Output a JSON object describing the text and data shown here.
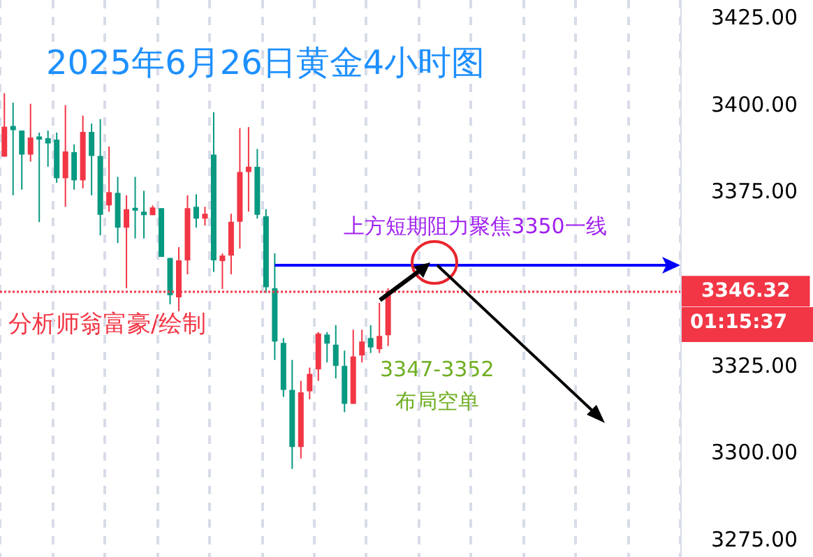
{
  "chart_data": {
    "type": "candlestick",
    "title": "2025年6月26日黄金4小时图",
    "categories": [
      null,
      null,
      null,
      null,
      null,
      null,
      null,
      null,
      null,
      null,
      null,
      null,
      null,
      null,
      null,
      null,
      null,
      null,
      null,
      null,
      null,
      null,
      null,
      null,
      null,
      null,
      null,
      null,
      null,
      null,
      null,
      null,
      null,
      null,
      null,
      null,
      null,
      null,
      null,
      null,
      null,
      null,
      null,
      null,
      null,
      null,
      null,
      null,
      null,
      null,
      null,
      null,
      null,
      null,
      null,
      null,
      null,
      null,
      null,
      null,
      null,
      null,
      null,
      null,
      null,
      null,
      null,
      null,
      null,
      null,
      null,
      null,
      null,
      null,
      null,
      null,
      null,
      null
    ],
    "ohlc": [
      [
        3385.0,
        3403.2,
        3385.0,
        3393.6
      ],
      [
        3393.8,
        3400.5,
        3373.9,
        3392.6
      ],
      [
        3392.5,
        3392.5,
        3375.5,
        3385.6
      ],
      [
        3385.6,
        3400.2,
        3383.6,
        3390.5
      ],
      [
        3390.8,
        3391.9,
        3366.2,
        3389.9
      ],
      [
        3390.3,
        3392.5,
        3382.1,
        3388.8
      ],
      [
        3389.9,
        3391.9,
        3377.5,
        3378.8
      ],
      [
        3378.8,
        3399.8,
        3370.6,
        3386.5
      ],
      [
        3386.3,
        3388.5,
        3375.5,
        3378.2
      ],
      [
        3378.2,
        3396.8,
        3375.9,
        3392.1
      ],
      [
        3392.1,
        3394.5,
        3373.9,
        3385.2
      ],
      [
        3385.2,
        3395.8,
        3362.4,
        3368.3
      ],
      [
        3371.0,
        3387.9,
        3369.2,
        3374.8
      ],
      [
        3374.6,
        3379.2,
        3360.2,
        3364.6
      ],
      [
        3364.6,
        3373.9,
        3347.2,
        3369.9
      ],
      [
        3370.3,
        3379.2,
        3361.5,
        3369.5
      ],
      [
        3369.2,
        3375.2,
        3361.5,
        3368.2
      ],
      [
        3368.2,
        3371.0,
        3368.2,
        3370.4
      ],
      [
        3370.2,
        3370.2,
        3356.2,
        3356.2
      ],
      [
        3355.9,
        3355.9,
        3342.6,
        3345.2
      ],
      [
        3344.6,
        3359.0,
        3340.6,
        3355.2
      ],
      [
        3355.2,
        3373.9,
        3351.2,
        3370.2
      ],
      [
        3370.6,
        3374.2,
        3364.6,
        3367.2
      ],
      [
        3367.2,
        3370.6,
        3365.2,
        3368.6
      ],
      [
        3385.6,
        3397.8,
        3351.9,
        3355.2
      ],
      [
        3355.0,
        3357.2,
        3347.0,
        3356.6
      ],
      [
        3356.6,
        3368.6,
        3351.2,
        3366.3
      ],
      [
        3366.3,
        3393.2,
        3358.6,
        3380.6
      ],
      [
        3380.6,
        3393.5,
        3369.2,
        3382.1
      ],
      [
        3382.1,
        3387.2,
        3367.2,
        3368.3
      ],
      [
        3367.9,
        3369.9,
        3345.9,
        3347.5
      ],
      [
        3347.2,
        3357.2,
        3326.6,
        3331.9
      ],
      [
        3331.5,
        3332.9,
        3316.0,
        3318.0
      ],
      [
        3318.0,
        3326.6,
        3295.3,
        3301.6
      ],
      [
        3301.6,
        3320.6,
        3298.3,
        3317.3
      ],
      [
        3317.6,
        3324.4,
        3315.3,
        3322.6
      ],
      [
        3323.9,
        3334.6,
        3320.6,
        3334.2
      ],
      [
        3333.9,
        3334.6,
        3325.9,
        3331.3
      ],
      [
        3331.0,
        3336.6,
        3321.3,
        3324.9
      ],
      [
        3324.9,
        3329.3,
        3311.6,
        3314.0
      ],
      [
        3314.0,
        3335.3,
        3314.0,
        3327.6
      ],
      [
        3327.9,
        3335.3,
        3325.9,
        3331.9
      ],
      [
        3332.9,
        3336.6,
        3328.6,
        3330.2
      ],
      [
        3329.7,
        3343.0,
        3328.6,
        3333.5
      ],
      [
        3333.7,
        3347.2,
        3330.6,
        3346.3
      ],
      null,
      null,
      null,
      null,
      null,
      null,
      null,
      null,
      null,
      null,
      null,
      null,
      null,
      null,
      null,
      null,
      null,
      null,
      null,
      null,
      null,
      null,
      null,
      null,
      null,
      null,
      null,
      null,
      null,
      null,
      null,
      null,
      null
    ],
    "colors": [
      "#f23645",
      "#089981",
      "#089981",
      "#f23645",
      "#089981",
      "#089981",
      "#089981",
      "#f23645",
      "#089981",
      "#f23645",
      "#089981",
      "#089981",
      "#f23645",
      "#089981",
      "#f23645",
      "#089981",
      "#089981",
      "#f23645",
      "#089981",
      "#089981",
      "#f23645",
      "#f23645",
      "#089981",
      "#f23645",
      "#089981",
      "#f23645",
      "#f23645",
      "#f23645",
      "#f23645",
      "#089981",
      "#089981",
      "#089981",
      "#089981",
      "#089981",
      "#f23645",
      "#f23645",
      "#f23645",
      "#089981",
      "#089981",
      "#089981",
      "#f23645",
      "#f23645",
      "#089981",
      "#f23645",
      "#f23645",
      null,
      null,
      null,
      null,
      null,
      null,
      null,
      null,
      null,
      null,
      null,
      null,
      null,
      null,
      null,
      null,
      null,
      null,
      null,
      null,
      null,
      null,
      null,
      null,
      null,
      null,
      null,
      null,
      null,
      null,
      null,
      null,
      null
    ],
    "ylim": [
      3270,
      3430
    ],
    "yticks": [
      {
        "value": 3275,
        "label": "3275.00"
      },
      {
        "value": 3300,
        "label": "3300.00"
      },
      {
        "value": 3325,
        "label": "3325.00"
      },
      {
        "value": 3375,
        "label": "3375.00"
      },
      {
        "value": 3400,
        "label": "3400.00"
      },
      {
        "value": 3425,
        "label": "3425.00"
      }
    ],
    "grid": "x",
    "ref_lines": [
      {
        "axis": "y",
        "value": 3354,
        "label": "上方短期阻力聚焦3350一线",
        "color": "#0000ff",
        "line_style": "solid"
      },
      {
        "axis": "y",
        "value": 3346.32,
        "label": "3346.32",
        "color": "#f23645",
        "line_style": "dotted"
      }
    ],
    "annotations": [
      "分析师翁富豪/绘制",
      "3347-3352",
      "布局空单",
      "01:15:37"
    ]
  }
}
